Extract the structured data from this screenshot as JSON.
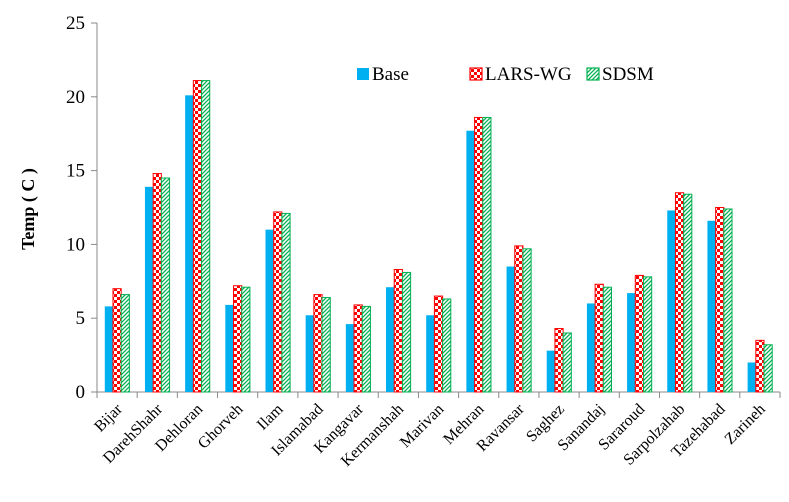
{
  "chart_data": {
    "type": "bar",
    "ylabel": "Temp ( C )",
    "xlabel": "",
    "ylim": [
      0,
      25
    ],
    "yticks": [
      0,
      5,
      10,
      15,
      20,
      25
    ],
    "grid": false,
    "legend_position": "top-right",
    "categories": [
      "Bijar",
      "DarehShahr",
      "Dehloran",
      "Ghorveh",
      "Ilam",
      "Islamabad",
      "Kangavar",
      "Kermanshah",
      "Marivan",
      "Mehran",
      "Ravansar",
      "Saghez",
      "Sanandaj",
      "Sararoud",
      "Sarpolzahab",
      "Tazehabad",
      "Zarineh"
    ],
    "series": [
      {
        "name": "Base",
        "color": "#00b0f0",
        "pattern": "solid",
        "values": [
          5.8,
          13.9,
          20.1,
          5.9,
          11.0,
          5.2,
          4.6,
          7.1,
          5.2,
          17.7,
          8.5,
          2.8,
          6.0,
          6.7,
          12.3,
          11.6,
          2.0
        ]
      },
      {
        "name": "LARS-WG",
        "color": "#ff0000",
        "pattern": "checker",
        "values": [
          7.0,
          14.8,
          21.1,
          7.2,
          12.2,
          6.6,
          5.9,
          8.3,
          6.5,
          18.6,
          9.9,
          4.3,
          7.3,
          7.9,
          13.5,
          12.5,
          3.5
        ]
      },
      {
        "name": "SDSM",
        "color": "#00b050",
        "pattern": "diagonal",
        "values": [
          6.6,
          14.5,
          21.1,
          7.1,
          12.1,
          6.4,
          5.8,
          8.1,
          6.3,
          18.6,
          9.7,
          4.0,
          7.1,
          7.8,
          13.4,
          12.4,
          3.2
        ]
      }
    ]
  }
}
